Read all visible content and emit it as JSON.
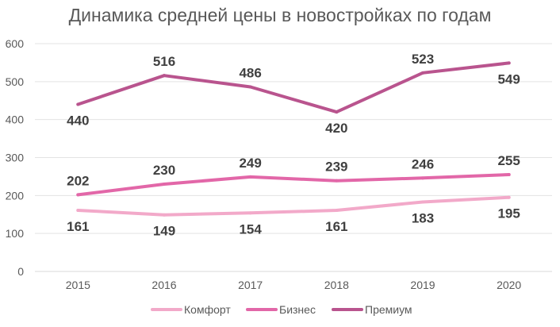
{
  "chart_data": {
    "type": "line",
    "title": "Динамика средней цены в новостройках по годам",
    "xlabel": "",
    "ylabel": "",
    "categories": [
      "2015",
      "2016",
      "2017",
      "2018",
      "2019",
      "2020"
    ],
    "ylim": [
      0,
      600
    ],
    "yticks": [
      0,
      100,
      200,
      300,
      400,
      500,
      600
    ],
    "grid": true,
    "legend_position": "bottom",
    "series": [
      {
        "name": "Комфорт",
        "color": "#F2A9C9",
        "values": [
          161,
          149,
          154,
          161,
          183,
          195
        ]
      },
      {
        "name": "Бизнес",
        "color": "#E267A8",
        "values": [
          202,
          230,
          249,
          239,
          246,
          255
        ]
      },
      {
        "name": "Премиум",
        "color": "#B9548E",
        "values": [
          440,
          516,
          486,
          420,
          523,
          549
        ]
      }
    ]
  }
}
